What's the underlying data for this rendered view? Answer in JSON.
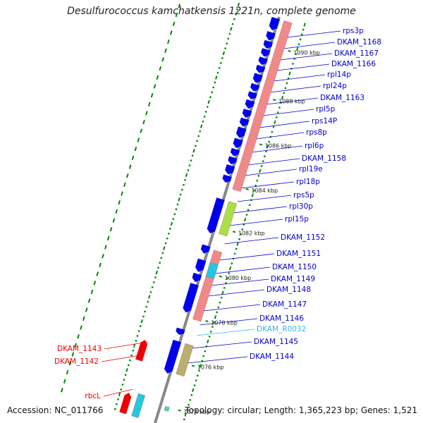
{
  "title": "Desulfurococcus kamchatkensis 1221n, complete genome",
  "footer": {
    "accession": "Accession: NC_011766",
    "summary": "Topology: circular; Length: 1,365,223 bp; Genes: 1,521"
  },
  "colors": {
    "cds": "#0000ee",
    "rrna_like": "#f08a8a",
    "lime": "#a8e04a",
    "cyan": "#22c8e0",
    "olive": "#b8b070",
    "trna": "#40d8c8",
    "red_gene": "#ee0000",
    "backbone": "#888888",
    "dots": "#008800",
    "label_default": "#0000cc",
    "label_trna": "#33bbdd",
    "label_red": "#ee0000"
  },
  "scale_ticks": [
    "1090 kbp",
    "1088 kbp",
    "1086 kbp",
    "1084 kbp",
    "1082 kbp",
    "1080 kbp",
    "1078 kbp",
    "1076 kbp",
    "1074 kbp"
  ],
  "right_labels": [
    {
      "text": "rps3p",
      "kind": "cds"
    },
    {
      "text": "DKAM_1168",
      "kind": "cds"
    },
    {
      "text": "DKAM_1167",
      "kind": "cds"
    },
    {
      "text": "DKAM_1166",
      "kind": "cds"
    },
    {
      "text": "rpl14p",
      "kind": "cds"
    },
    {
      "text": "rpl24p",
      "kind": "cds"
    },
    {
      "text": "DKAM_1163",
      "kind": "cds"
    },
    {
      "text": "rpl5p",
      "kind": "cds"
    },
    {
      "text": "rps14P",
      "kind": "cds"
    },
    {
      "text": "rps8p",
      "kind": "cds"
    },
    {
      "text": "rpl6p",
      "kind": "cds"
    },
    {
      "text": "DKAM_1158",
      "kind": "cds"
    },
    {
      "text": "rpl19e",
      "kind": "cds"
    },
    {
      "text": "rpl18p",
      "kind": "cds"
    },
    {
      "text": "rps5p",
      "kind": "cds"
    },
    {
      "text": "rpl30p",
      "kind": "cds"
    },
    {
      "text": "rpl15p",
      "kind": "cds"
    },
    {
      "text": "DKAM_1152",
      "kind": "cds"
    },
    {
      "text": "DKAM_1151",
      "kind": "cds"
    },
    {
      "text": "DKAM_1150",
      "kind": "cds"
    },
    {
      "text": "DKAM_1149",
      "kind": "cds"
    },
    {
      "text": "DKAM_1148",
      "kind": "cds"
    },
    {
      "text": "DKAM_1147",
      "kind": "cds"
    },
    {
      "text": "DKAM_1146",
      "kind": "cds"
    },
    {
      "text": "DKAM_R0032",
      "kind": "trna"
    },
    {
      "text": "DKAM_1145",
      "kind": "cds"
    },
    {
      "text": "DKAM_1144",
      "kind": "cds"
    }
  ],
  "left_labels": [
    {
      "text": "DKAM_1143",
      "kind": "red"
    },
    {
      "text": "DKAM_1142",
      "kind": "red"
    },
    {
      "text": "rbcL",
      "kind": "red"
    }
  ]
}
